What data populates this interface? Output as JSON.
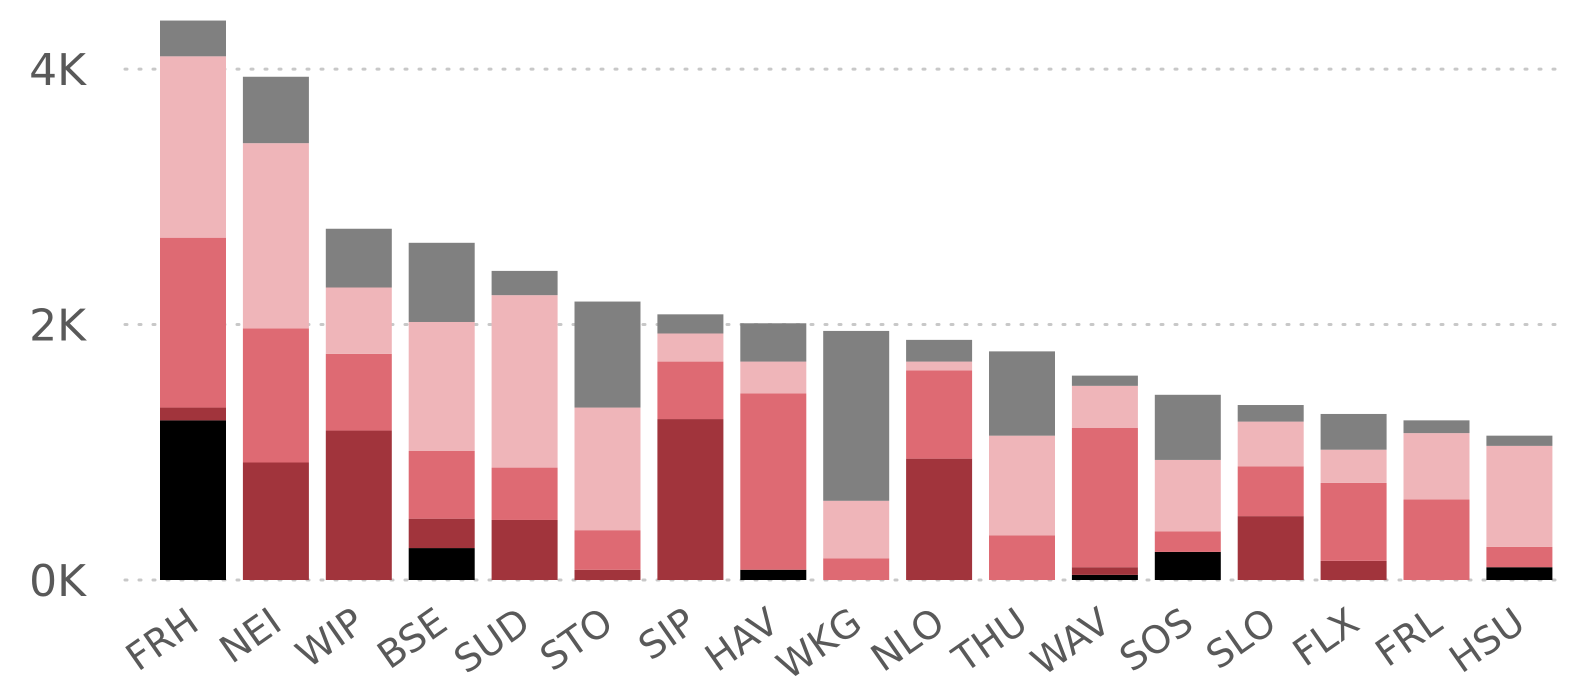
{
  "chart_data": {
    "type": "bar",
    "stacked": true,
    "title": "",
    "xlabel": "",
    "ylabel": "",
    "ylim": [
      0,
      4400
    ],
    "grid": true,
    "legend": "none",
    "yticks": [
      {
        "value": 0,
        "label": "0K"
      },
      {
        "value": 2000,
        "label": "2K"
      },
      {
        "value": 4000,
        "label": "4K"
      }
    ],
    "categories": [
      "FRH",
      "NEI",
      "WIP",
      "BSE",
      "SUD",
      "STO",
      "SIP",
      "HAV",
      "WKG",
      "NLO",
      "THU",
      "WAV",
      "SOS",
      "SLO",
      "FLX",
      "FRL",
      "HSU"
    ],
    "series": [
      {
        "color": "#000000",
        "values": [
          1250,
          0,
          0,
          250,
          0,
          0,
          0,
          80,
          0,
          0,
          0,
          40,
          220,
          0,
          0,
          0,
          100
        ]
      },
      {
        "color": "#a1343c",
        "values": [
          100,
          920,
          1170,
          230,
          470,
          80,
          1260,
          0,
          0,
          950,
          0,
          60,
          0,
          500,
          150,
          0,
          0
        ]
      },
      {
        "color": "#de6a73",
        "values": [
          1330,
          1050,
          600,
          530,
          410,
          310,
          450,
          1380,
          170,
          690,
          350,
          1090,
          160,
          390,
          610,
          630,
          160
        ]
      },
      {
        "color": "#efb5b9",
        "values": [
          1420,
          1450,
          520,
          1010,
          1350,
          960,
          220,
          250,
          450,
          70,
          780,
          330,
          560,
          350,
          260,
          520,
          790
        ]
      },
      {
        "color": "#808080",
        "values": [
          280,
          520,
          460,
          620,
          190,
          830,
          150,
          300,
          1330,
          170,
          660,
          80,
          510,
          130,
          280,
          100,
          80
        ]
      }
    ]
  }
}
